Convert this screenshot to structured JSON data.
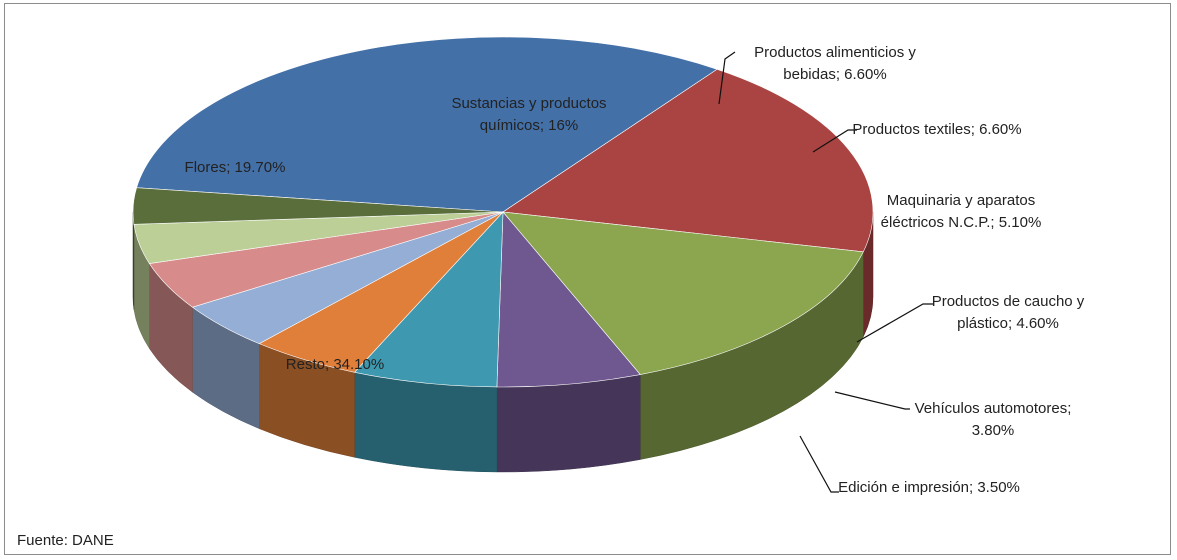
{
  "chart_data": {
    "type": "pie",
    "title": "",
    "slices": [
      {
        "label": "Resto",
        "value": 34.1,
        "display": "Resto; 34.10%",
        "color": "#4470a8"
      },
      {
        "label": "Flores",
        "value": 19.7,
        "display": "Flores; 19.70%",
        "color": "#a94442"
      },
      {
        "label": "Sustancias y productos químicos",
        "value": 16,
        "display": "Sustancias y productos químicos; 16%",
        "color": "#8ba64f"
      },
      {
        "label": "Productos alimenticios y bebidas",
        "value": 6.6,
        "display": "Productos alimenticios y bebidas; 6.60%",
        "color": "#6f578f"
      },
      {
        "label": "Productos textiles",
        "value": 6.6,
        "display": "Productos textiles; 6.60%",
        "color": "#3e99b0"
      },
      {
        "label": "Maquinaria y aparatos éléctricos N.C.P.",
        "value": 5.1,
        "display": "Maquinaria y aparatos éléctricos N.C.P.; 5.10%",
        "color": "#e07f3a"
      },
      {
        "label": "",
        "value": 4.6,
        "display": "",
        "color": "#94aed6"
      },
      {
        "label": "Productos de caucho y plástico",
        "value": 4.6,
        "display": "Productos de caucho y plástico; 4.60%",
        "color": "#d78c8b"
      },
      {
        "label": "Vehículos automotores",
        "value": 3.8,
        "display": "Vehículos automotores; 3.80%",
        "color": "#bccf96"
      },
      {
        "label": "Edición e impresión",
        "value": 3.5,
        "display": "Edición e impresión; 3.50%",
        "color": "#5a6e3c"
      }
    ],
    "labels": [
      {
        "lines": [
          "Resto; 34.10%"
        ]
      },
      {
        "lines": [
          "Flores; 19.70%"
        ]
      },
      {
        "lines": [
          "Sustancias y productos",
          "químicos; 16%"
        ]
      },
      {
        "lines": [
          "Productos alimenticios y",
          "bebidas; 6.60%"
        ]
      },
      {
        "lines": [
          "Productos textiles; 6.60%"
        ]
      },
      {
        "lines": [
          "Maquinaria y aparatos",
          "éléctricos N.C.P.; 5.10%"
        ]
      },
      {
        "lines": [
          "Productos de caucho y",
          "plástico; 4.60%"
        ]
      },
      {
        "lines": [
          "Vehículos automotores;",
          "3.80%"
        ]
      },
      {
        "lines": [
          "Edición e impresión; 3.50%"
        ]
      }
    ],
    "legend": "none"
  },
  "footer": {
    "source": "Fuente: DANE"
  }
}
